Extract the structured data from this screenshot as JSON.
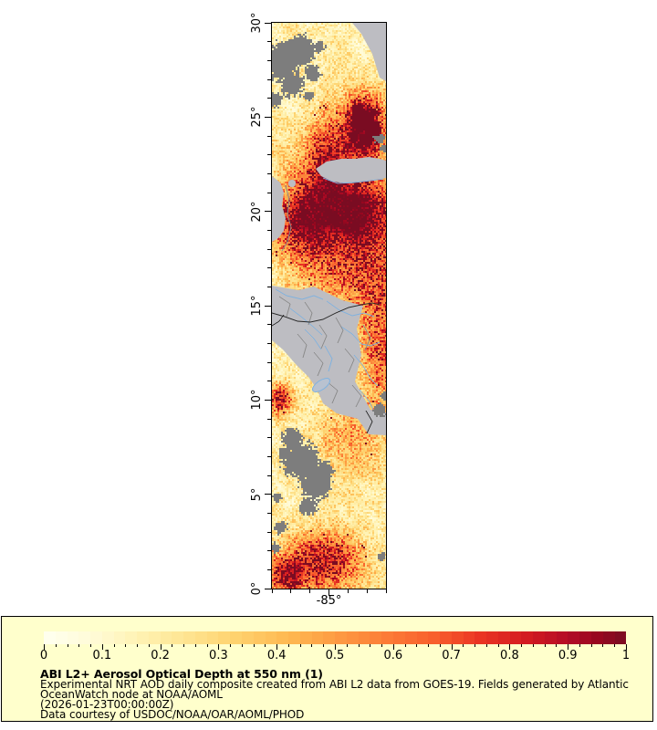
{
  "map": {
    "y_axis": {
      "range": [
        0,
        30
      ],
      "minor_step_deg": 1,
      "major_ticks": [
        {
          "value": 30,
          "label": "30°"
        },
        {
          "value": 25,
          "label": "25°"
        },
        {
          "value": 20,
          "label": "20°"
        },
        {
          "value": 15,
          "label": "15°"
        },
        {
          "value": 10,
          "label": "10°"
        },
        {
          "value": 5,
          "label": "5°"
        },
        {
          "value": 0,
          "label": "0°"
        }
      ]
    },
    "x_axis": {
      "range": [
        -88,
        -82
      ],
      "minor_step_deg": 1,
      "major_ticks": [
        {
          "value": -85,
          "label": "-85°"
        }
      ]
    }
  },
  "colorbar": {
    "min": 0,
    "max": 1,
    "minor_step": 0.02,
    "major_step": 0.1,
    "tick_labels": [
      "0",
      "0.1",
      "0.2",
      "0.3",
      "0.4",
      "0.5",
      "0.6",
      "0.7",
      "0.8",
      "0.9",
      "1"
    ],
    "stops": [
      [
        0.0,
        "#fffff0"
      ],
      [
        0.08,
        "#fffbd8"
      ],
      [
        0.16,
        "#fff3b4"
      ],
      [
        0.25,
        "#fee38f"
      ],
      [
        0.33,
        "#fed26e"
      ],
      [
        0.42,
        "#feb851"
      ],
      [
        0.5,
        "#fd9c43"
      ],
      [
        0.58,
        "#fc7f38"
      ],
      [
        0.67,
        "#f85f2d"
      ],
      [
        0.75,
        "#ea3423"
      ],
      [
        0.83,
        "#d31b21"
      ],
      [
        0.9,
        "#b30b26"
      ],
      [
        0.95,
        "#98071f"
      ],
      [
        1.0,
        "#7a0c22"
      ]
    ]
  },
  "caption": {
    "title": "ABI L2+ Aerosol Optical Depth at 550 nm (1)",
    "line1": "Experimental NRT AOD daily composite created from ABI L2 data from GOES-19. Fields generated by Atlantic",
    "line2": "OceanWatch node at NOAA/AOML",
    "line3": "(2026-01-23T00:00:00Z)",
    "line4": "Data courtesy of USDOC/NOAA/OAR/AOML/PHOD"
  },
  "colors": {
    "legend_bg": "#ffffcc",
    "frame": "#000000",
    "land_no_data": "#bdbdc2",
    "cloud_no_data": "#7d7d7d",
    "river_blue": "#7fb2e0",
    "admin_border_gray": "#8a8a8a",
    "country_border_black": "#262626",
    "dense_plume_dark_red": "#7a0c22",
    "lake_fill": "#b9c2d0",
    "text": "#000000"
  }
}
